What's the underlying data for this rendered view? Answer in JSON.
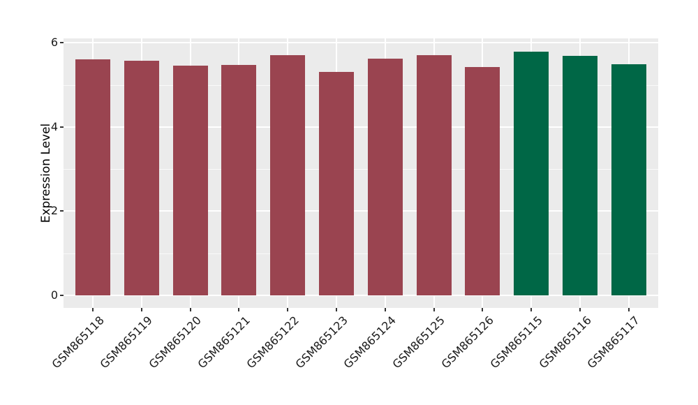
{
  "figure": {
    "y_axis_title": "Expression Level"
  },
  "chart_data": {
    "type": "bar",
    "title": "",
    "xlabel": "",
    "ylabel": "Expression Level",
    "categories": [
      "GSM865118",
      "GSM865119",
      "GSM865120",
      "GSM865121",
      "GSM865122",
      "GSM865123",
      "GSM865124",
      "GSM865125",
      "GSM865126",
      "GSM865115",
      "GSM865116",
      "GSM865117"
    ],
    "values": [
      5.6,
      5.58,
      5.46,
      5.48,
      5.7,
      5.3,
      5.62,
      5.71,
      5.42,
      5.79,
      5.69,
      5.49
    ],
    "bar_colors": [
      "#9a4450",
      "#9a4450",
      "#9a4450",
      "#9a4450",
      "#9a4450",
      "#9a4450",
      "#9a4450",
      "#9a4450",
      "#9a4450",
      "#006746",
      "#006746",
      "#006746"
    ],
    "color_groups": {
      "maroon_bars": "#9a4450",
      "green_bars": "#006746"
    },
    "ylim": [
      0,
      6
    ],
    "yticks": [
      "0",
      "2",
      "4",
      "6"
    ],
    "yticks_minor": [
      1,
      3,
      5
    ],
    "grid": true,
    "legend": "none",
    "panel_background": "#ebebeb",
    "gridline_color": "#ffffff",
    "tick_color": "#333333"
  }
}
